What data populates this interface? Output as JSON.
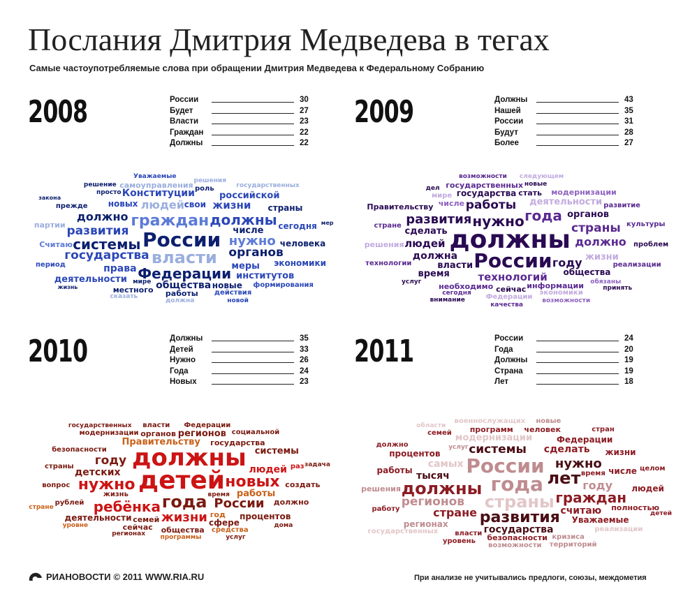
{
  "header": {
    "title": "Послания Дмитрия Медведева в тегах",
    "subtitle": "Самые частоупотребляемые слова при обращении Дмитрия Медведева к Федеральному Собранию"
  },
  "footer": {
    "brand": "РИАНОВОСТИ",
    "copyright": "© 2011",
    "site": "WWW.RIA.RU",
    "note": "При анализе не учитывались предлоги, союзы, междометия"
  },
  "chart_data": [
    {
      "type": "table",
      "title": "2008",
      "categories": [
        "России",
        "Будет",
        "Власти",
        "Граждан",
        "Должны"
      ],
      "values": [
        30,
        27,
        23,
        22,
        22
      ],
      "colors": [
        "#0c1f6e",
        "#2b47b8",
        "#5c7bd6",
        "#9aaede"
      ],
      "cloud": [
        {
          "t": "числе",
          "s": 13,
          "c": 0
        },
        {
          "t": "новых",
          "s": 12,
          "c": 1
        },
        {
          "t": "человека",
          "s": 12,
          "c": 0
        },
        {
          "t": "прежде",
          "s": 10,
          "c": 0
        },
        {
          "t": "действия",
          "s": 10,
          "c": 1
        },
        {
          "t": "меры",
          "s": 13,
          "c": 1
        },
        {
          "t": "Считаю",
          "s": 11,
          "c": 2
        },
        {
          "t": "формирования",
          "s": 10,
          "c": 1
        },
        {
          "t": "сегодня",
          "s": 12,
          "c": 1
        },
        {
          "t": "новые",
          "s": 12,
          "c": 0
        },
        {
          "t": "общества",
          "s": 14,
          "c": 0
        },
        {
          "t": "жизни",
          "s": 15,
          "c": 1
        },
        {
          "t": "органов",
          "s": 17,
          "c": 0
        },
        {
          "t": "власти",
          "s": 24,
          "c": 3
        },
        {
          "t": "людей",
          "s": 16,
          "c": 3
        },
        {
          "t": "жизнь",
          "s": 8,
          "c": 0
        },
        {
          "t": "решения",
          "s": 9,
          "c": 3
        },
        {
          "t": "системы",
          "s": 20,
          "c": 0
        },
        {
          "t": "закона",
          "s": 8,
          "c": 0
        },
        {
          "t": "мире",
          "s": 9,
          "c": 0
        },
        {
          "t": "просто",
          "s": 9,
          "c": 0
        },
        {
          "t": "период",
          "s": 10,
          "c": 1
        },
        {
          "t": "государства",
          "s": 17,
          "c": 1
        },
        {
          "t": "мер",
          "s": 8,
          "c": 0
        },
        {
          "t": "России",
          "s": 28,
          "c": 0
        },
        {
          "t": "должна",
          "s": 9,
          "c": 3
        },
        {
          "t": "сказать",
          "s": 9,
          "c": 3
        },
        {
          "t": "страны",
          "s": 12,
          "c": 0
        },
        {
          "t": "должны",
          "s": 20,
          "c": 1
        },
        {
          "t": "экономики",
          "s": 12,
          "c": 1
        },
        {
          "t": "граждан",
          "s": 22,
          "c": 2
        },
        {
          "t": "свои",
          "s": 12,
          "c": 1
        },
        {
          "t": "Федерации",
          "s": 20,
          "c": 0
        },
        {
          "t": "нужно",
          "s": 18,
          "c": 2
        },
        {
          "t": "роль",
          "s": 10,
          "c": 0
        },
        {
          "t": "развития",
          "s": 17,
          "c": 1
        },
        {
          "t": "институтов",
          "s": 13,
          "c": 1
        },
        {
          "t": "работы",
          "s": 11,
          "c": 0
        },
        {
          "t": "Конституции",
          "s": 14,
          "c": 1
        },
        {
          "t": "Уважаемые",
          "s": 9,
          "c": 1
        },
        {
          "t": "решение",
          "s": 9,
          "c": 0
        },
        {
          "t": "самоуправления",
          "s": 11,
          "c": 3
        },
        {
          "t": "должно",
          "s": 16,
          "c": 0
        },
        {
          "t": "права",
          "s": 14,
          "c": 1
        },
        {
          "t": "российской",
          "s": 13,
          "c": 1
        },
        {
          "t": "деятельности",
          "s": 13,
          "c": 1
        },
        {
          "t": "государственных",
          "s": 9,
          "c": 3
        },
        {
          "t": "местного",
          "s": 11,
          "c": 0
        },
        {
          "t": "новой",
          "s": 9,
          "c": 1
        },
        {
          "t": "партии",
          "s": 11,
          "c": 3
        }
      ]
    },
    {
      "type": "table",
      "title": "2009",
      "categories": [
        "Должны",
        "Нашей",
        "России",
        "Будут",
        "Более"
      ],
      "values": [
        43,
        35,
        31,
        28,
        27
      ],
      "colors": [
        "#2a0a52",
        "#5a2a91",
        "#8e62c0",
        "#c2abdf"
      ],
      "cloud": [
        {
          "t": "новые",
          "s": 9,
          "c": 0
        },
        {
          "t": "числе",
          "s": 11,
          "c": 2
        },
        {
          "t": "общества",
          "s": 12,
          "c": 0
        },
        {
          "t": "технологии",
          "s": 10,
          "c": 1
        },
        {
          "t": "стране",
          "s": 10,
          "c": 1
        },
        {
          "t": "сделать",
          "s": 13,
          "c": 0
        },
        {
          "t": "государства",
          "s": 12,
          "c": 0
        },
        {
          "t": "мире",
          "s": 10,
          "c": 3
        },
        {
          "t": "должна",
          "s": 14,
          "c": 0
        },
        {
          "t": "технологий",
          "s": 15,
          "c": 1
        },
        {
          "t": "развитие",
          "s": 10,
          "c": 1
        },
        {
          "t": "обязаны",
          "s": 9,
          "c": 2
        },
        {
          "t": "информации",
          "s": 11,
          "c": 1
        },
        {
          "t": "культуры",
          "s": 10,
          "c": 1
        },
        {
          "t": "нужно",
          "s": 20,
          "c": 0
        },
        {
          "t": "деятельности",
          "s": 13,
          "c": 3
        },
        {
          "t": "России",
          "s": 28,
          "c": 0
        },
        {
          "t": "власти",
          "s": 13,
          "c": 0
        },
        {
          "t": "должны",
          "s": 36,
          "c": 0
        },
        {
          "t": "реализации",
          "s": 10,
          "c": 1
        },
        {
          "t": "экономики",
          "s": 10,
          "c": 3
        },
        {
          "t": "необходимо",
          "s": 11,
          "c": 1
        },
        {
          "t": "сегодня",
          "s": 9,
          "c": 1
        },
        {
          "t": "работы",
          "s": 17,
          "c": 0
        },
        {
          "t": "должно",
          "s": 16,
          "c": 1
        },
        {
          "t": "развития",
          "s": 18,
          "c": 0
        },
        {
          "t": "услуг",
          "s": 9,
          "c": 0
        },
        {
          "t": "сейчас",
          "s": 11,
          "c": 0
        },
        {
          "t": "возможности",
          "s": 9,
          "c": 1
        },
        {
          "t": "страны",
          "s": 17,
          "c": 1
        },
        {
          "t": "Правительству",
          "s": 11,
          "c": 0
        },
        {
          "t": "людей",
          "s": 15,
          "c": 0
        },
        {
          "t": "года",
          "s": 20,
          "c": 1
        },
        {
          "t": "проблем",
          "s": 10,
          "c": 0
        },
        {
          "t": "государственных",
          "s": 11,
          "c": 1
        },
        {
          "t": "дел",
          "s": 9,
          "c": 0
        },
        {
          "t": "органов",
          "s": 13,
          "c": 0
        },
        {
          "t": "Федерации",
          "s": 10,
          "c": 3
        },
        {
          "t": "жизни",
          "s": 13,
          "c": 3
        },
        {
          "t": "модернизации",
          "s": 11,
          "c": 2
        },
        {
          "t": "решения",
          "s": 11,
          "c": 3
        },
        {
          "t": "году",
          "s": 16,
          "c": 0
        },
        {
          "t": "время",
          "s": 13,
          "c": 0
        },
        {
          "t": "следующем",
          "s": 9,
          "c": 3
        },
        {
          "t": "стать",
          "s": 11,
          "c": 0
        },
        {
          "t": "принять",
          "s": 9,
          "c": 0
        },
        {
          "t": "возможности",
          "s": 9,
          "c": 2
        },
        {
          "t": "качества",
          "s": 9,
          "c": 1
        },
        {
          "t": "внимание",
          "s": 9,
          "c": 0
        }
      ]
    },
    {
      "type": "table",
      "title": "2010",
      "categories": [
        "Должны",
        "Детей",
        "Нужно",
        "Года",
        "Новых"
      ],
      "values": [
        35,
        33,
        26,
        24,
        23
      ],
      "colors": [
        "#cc1414",
        "#7a1a10",
        "#c9611a",
        "#e2a27a"
      ],
      "cloud": [
        {
          "t": "детей",
          "s": 36,
          "c": 0
        },
        {
          "t": "государства",
          "s": 11,
          "c": 1
        },
        {
          "t": "жизнь",
          "s": 10,
          "c": 1
        },
        {
          "t": "задача",
          "s": 9,
          "c": 1
        },
        {
          "t": "органов",
          "s": 11,
          "c": 1
        },
        {
          "t": "безопасности",
          "s": 10,
          "c": 1
        },
        {
          "t": "процентов",
          "s": 12,
          "c": 1
        },
        {
          "t": "рублей",
          "s": 10,
          "c": 1
        },
        {
          "t": "году",
          "s": 17,
          "c": 1
        },
        {
          "t": "модернизации",
          "s": 10,
          "c": 1
        },
        {
          "t": "года",
          "s": 24,
          "c": 1
        },
        {
          "t": "вопрос",
          "s": 10,
          "c": 1
        },
        {
          "t": "детских",
          "s": 14,
          "c": 1
        },
        {
          "t": "нужно",
          "s": 22,
          "c": 0
        },
        {
          "t": "программы",
          "s": 9,
          "c": 2
        },
        {
          "t": "время",
          "s": 9,
          "c": 1
        },
        {
          "t": "сфере",
          "s": 12,
          "c": 1
        },
        {
          "t": "людей",
          "s": 14,
          "c": 0
        },
        {
          "t": "раз",
          "s": 10,
          "c": 0
        },
        {
          "t": "регионах",
          "s": 9,
          "c": 1
        },
        {
          "t": "страны",
          "s": 10,
          "c": 1
        },
        {
          "t": "работы",
          "s": 13,
          "c": 2
        },
        {
          "t": "дома",
          "s": 9,
          "c": 1
        },
        {
          "t": "новых",
          "s": 22,
          "c": 0
        },
        {
          "t": "ребёнка",
          "s": 20,
          "c": 0
        },
        {
          "t": "Правительству",
          "s": 13,
          "c": 2
        },
        {
          "t": "семей",
          "s": 11,
          "c": 1
        },
        {
          "t": "услуг",
          "s": 9,
          "c": 1
        },
        {
          "t": "регионов",
          "s": 13,
          "c": 1
        },
        {
          "t": "России",
          "s": 18,
          "c": 1
        },
        {
          "t": "средства",
          "s": 10,
          "c": 2
        },
        {
          "t": "деятельности",
          "s": 12,
          "c": 1
        },
        {
          "t": "создать",
          "s": 11,
          "c": 1
        },
        {
          "t": "должно",
          "s": 11,
          "c": 1
        },
        {
          "t": "общества",
          "s": 11,
          "c": 1
        },
        {
          "t": "должны",
          "s": 34,
          "c": 0
        },
        {
          "t": "власти",
          "s": 10,
          "c": 1
        },
        {
          "t": "уровне",
          "s": 9,
          "c": 2
        },
        {
          "t": "Федерации",
          "s": 10,
          "c": 1
        },
        {
          "t": "жизни",
          "s": 18,
          "c": 0
        },
        {
          "t": "социальной",
          "s": 10,
          "c": 1
        },
        {
          "t": "государственных",
          "s": 9,
          "c": 1
        },
        {
          "t": "год",
          "s": 11,
          "c": 2
        },
        {
          "t": "системы",
          "s": 13,
          "c": 1
        },
        {
          "t": "стране",
          "s": 9,
          "c": 2
        },
        {
          "t": "сейчас",
          "s": 11,
          "c": 1
        }
      ]
    },
    {
      "type": "table",
      "title": "2011",
      "categories": [
        "России",
        "Года",
        "Должны",
        "Страна",
        "Лет"
      ],
      "values": [
        24,
        20,
        19,
        19,
        18
      ],
      "colors": [
        "#4a0d14",
        "#8c1d24",
        "#bf8c90",
        "#e2c6c8"
      ],
      "cloud": [
        {
          "t": "реализации",
          "s": 10,
          "c": 3
        },
        {
          "t": "числе",
          "s": 12,
          "c": 1
        },
        {
          "t": "время",
          "s": 10,
          "c": 1
        },
        {
          "t": "власти",
          "s": 10,
          "c": 1
        },
        {
          "t": "кризиса",
          "s": 10,
          "c": 2
        },
        {
          "t": "тысяч",
          "s": 14,
          "c": 0
        },
        {
          "t": "возможности",
          "s": 10,
          "c": 2
        },
        {
          "t": "Уважаемые",
          "s": 12,
          "c": 1
        },
        {
          "t": "самых",
          "s": 14,
          "c": 3
        },
        {
          "t": "считаю",
          "s": 14,
          "c": 1
        },
        {
          "t": "модернизации",
          "s": 13,
          "c": 3
        },
        {
          "t": "области",
          "s": 9,
          "c": 3
        },
        {
          "t": "детей",
          "s": 9,
          "c": 1
        },
        {
          "t": "страны",
          "s": 24,
          "c": 3
        },
        {
          "t": "процентов",
          "s": 12,
          "c": 1
        },
        {
          "t": "услуг",
          "s": 9,
          "c": 2
        },
        {
          "t": "системы",
          "s": 17,
          "c": 0
        },
        {
          "t": "целом",
          "s": 10,
          "c": 1
        },
        {
          "t": "работы",
          "s": 12,
          "c": 1
        },
        {
          "t": "работу",
          "s": 10,
          "c": 1
        },
        {
          "t": "полностью",
          "s": 11,
          "c": 1
        },
        {
          "t": "уровень",
          "s": 10,
          "c": 1
        },
        {
          "t": "года",
          "s": 28,
          "c": 2
        },
        {
          "t": "Федерации",
          "s": 12,
          "c": 1
        },
        {
          "t": "нужно",
          "s": 18,
          "c": 0
        },
        {
          "t": "лет",
          "s": 24,
          "c": 0
        },
        {
          "t": "должно",
          "s": 10,
          "c": 1
        },
        {
          "t": "должны",
          "s": 24,
          "c": 1
        },
        {
          "t": "жизни",
          "s": 12,
          "c": 1
        },
        {
          "t": "безопасности",
          "s": 11,
          "c": 1
        },
        {
          "t": "регионов",
          "s": 17,
          "c": 2
        },
        {
          "t": "регионах",
          "s": 12,
          "c": 2
        },
        {
          "t": "граждан",
          "s": 20,
          "c": 1
        },
        {
          "t": "году",
          "s": 16,
          "c": 2
        },
        {
          "t": "военнослужащих",
          "s": 10,
          "c": 3
        },
        {
          "t": "семей",
          "s": 10,
          "c": 1
        },
        {
          "t": "стране",
          "s": 16,
          "c": 1
        },
        {
          "t": "людей",
          "s": 12,
          "c": 1
        },
        {
          "t": "России",
          "s": 28,
          "c": 2
        },
        {
          "t": "сделать",
          "s": 14,
          "c": 1
        },
        {
          "t": "новые",
          "s": 10,
          "c": 2
        },
        {
          "t": "государства",
          "s": 14,
          "c": 0
        },
        {
          "t": "программ",
          "s": 11,
          "c": 1
        },
        {
          "t": "стран",
          "s": 10,
          "c": 1
        },
        {
          "t": "территорий",
          "s": 10,
          "c": 2
        },
        {
          "t": "государственных",
          "s": 10,
          "c": 3
        },
        {
          "t": "решения",
          "s": 11,
          "c": 2
        },
        {
          "t": "развития",
          "s": 22,
          "c": 0
        },
        {
          "t": "человек",
          "s": 11,
          "c": 1
        }
      ]
    }
  ]
}
